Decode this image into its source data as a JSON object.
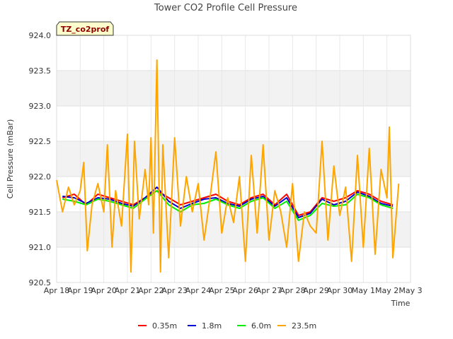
{
  "chart_data": {
    "type": "line",
    "title": "Tower CO2 Profile Cell Pressure",
    "badge": "TZ_co2prof",
    "xlabel": "Time",
    "ylabel": "Cell Pressure (mBar)",
    "ylim": [
      920.5,
      924.0
    ],
    "yticks": [
      "920.5",
      "921.0",
      "921.5",
      "922.0",
      "922.5",
      "923.0",
      "923.5",
      "924.0"
    ],
    "ytick_values": [
      920.5,
      921.0,
      921.5,
      922.0,
      922.5,
      923.0,
      923.5,
      924.0
    ],
    "xlim": [
      0,
      15
    ],
    "xticks": [
      "Apr 18",
      "Apr 19",
      "Apr 20",
      "Apr 21",
      "Apr 22",
      "Apr 23",
      "Apr 24",
      "Apr 25",
      "Apr 26",
      "Apr 27",
      "Apr 28",
      "Apr 29",
      "Apr 30",
      "May 1",
      "May 2",
      "May 3"
    ],
    "grid": true,
    "legend_position": "bottom",
    "series": [
      {
        "name": "0.35m",
        "color": "#ff0000",
        "x": [
          0.25,
          0.75,
          1.25,
          1.75,
          2.25,
          2.75,
          3.25,
          3.75,
          4.25,
          4.75,
          5.25,
          5.75,
          6.25,
          6.75,
          7.25,
          7.75,
          8.25,
          8.75,
          9.25,
          9.75,
          10.25,
          10.75,
          11.25,
          11.75,
          12.25,
          12.75,
          13.25,
          13.75,
          14.25
        ],
        "values": [
          921.7,
          921.75,
          921.6,
          921.75,
          921.7,
          921.65,
          921.6,
          921.7,
          921.8,
          921.7,
          921.6,
          921.65,
          921.7,
          921.75,
          921.65,
          921.6,
          921.7,
          921.75,
          921.6,
          921.75,
          921.45,
          921.5,
          921.7,
          921.65,
          921.7,
          921.8,
          921.75,
          921.65,
          921.6
        ]
      },
      {
        "name": "1.8m",
        "color": "#0000cc",
        "x": [
          0.25,
          0.75,
          1.25,
          1.75,
          2.25,
          2.75,
          3.25,
          3.75,
          4.25,
          4.75,
          5.25,
          5.75,
          6.25,
          6.75,
          7.25,
          7.75,
          8.25,
          8.75,
          9.25,
          9.75,
          10.25,
          10.75,
          11.25,
          11.75,
          12.25,
          12.75,
          13.25,
          13.75,
          14.25
        ],
        "values": [
          921.72,
          921.7,
          921.62,
          921.7,
          921.68,
          921.62,
          921.58,
          921.7,
          921.85,
          921.65,
          921.55,
          921.62,
          921.68,
          921.7,
          921.62,
          921.58,
          921.68,
          921.72,
          921.58,
          921.7,
          921.42,
          921.48,
          921.68,
          921.6,
          921.65,
          921.78,
          921.72,
          921.62,
          921.58
        ]
      },
      {
        "name": "6.0m",
        "color": "#00ee00",
        "x": [
          0.25,
          0.75,
          1.25,
          1.75,
          2.25,
          2.75,
          3.25,
          3.75,
          4.25,
          4.75,
          5.25,
          5.75,
          6.25,
          6.75,
          7.25,
          7.75,
          8.25,
          8.75,
          9.25,
          9.75,
          10.25,
          10.75,
          11.25,
          11.75,
          12.25,
          12.75,
          13.25,
          13.75,
          14.25
        ],
        "values": [
          921.68,
          921.65,
          921.6,
          921.68,
          921.65,
          921.6,
          921.55,
          921.68,
          921.8,
          921.6,
          921.5,
          921.6,
          921.62,
          921.68,
          921.6,
          921.55,
          921.65,
          921.7,
          921.55,
          921.65,
          921.38,
          921.45,
          921.62,
          921.58,
          921.6,
          921.75,
          921.7,
          921.6,
          921.55
        ]
      },
      {
        "name": "23.5m",
        "color": "#ffa500",
        "x": [
          0,
          0.25,
          0.5,
          0.75,
          1,
          1.15,
          1.3,
          1.5,
          1.75,
          2,
          2.15,
          2.35,
          2.5,
          2.75,
          3,
          3.15,
          3.3,
          3.5,
          3.75,
          3.9,
          4,
          4.1,
          4.25,
          4.4,
          4.5,
          4.75,
          5,
          5.25,
          5.5,
          5.75,
          6,
          6.25,
          6.5,
          6.75,
          7,
          7.25,
          7.5,
          7.75,
          8,
          8.25,
          8.5,
          8.75,
          9,
          9.25,
          9.5,
          9.75,
          10,
          10.25,
          10.5,
          10.75,
          11,
          11.25,
          11.5,
          11.75,
          12,
          12.25,
          12.5,
          12.75,
          13,
          13.25,
          13.5,
          13.75,
          14,
          14.1,
          14.25,
          14.5
        ],
        "values": [
          921.95,
          921.5,
          921.85,
          921.6,
          921.8,
          922.2,
          920.95,
          921.6,
          921.9,
          921.5,
          922.45,
          921.0,
          921.8,
          921.3,
          922.6,
          920.65,
          922.5,
          921.4,
          922.1,
          921.6,
          922.55,
          921.2,
          923.65,
          920.65,
          922.45,
          920.85,
          922.55,
          921.3,
          922.0,
          921.5,
          921.9,
          921.1,
          921.7,
          922.35,
          921.2,
          921.7,
          921.35,
          922.0,
          920.8,
          922.3,
          921.2,
          922.45,
          921.1,
          921.8,
          921.5,
          921.0,
          921.9,
          920.8,
          921.5,
          921.3,
          921.2,
          922.5,
          921.1,
          922.15,
          921.45,
          921.85,
          920.8,
          922.3,
          921.0,
          922.4,
          920.9,
          922.1,
          921.7,
          922.7,
          920.85,
          921.9
        ]
      }
    ]
  }
}
